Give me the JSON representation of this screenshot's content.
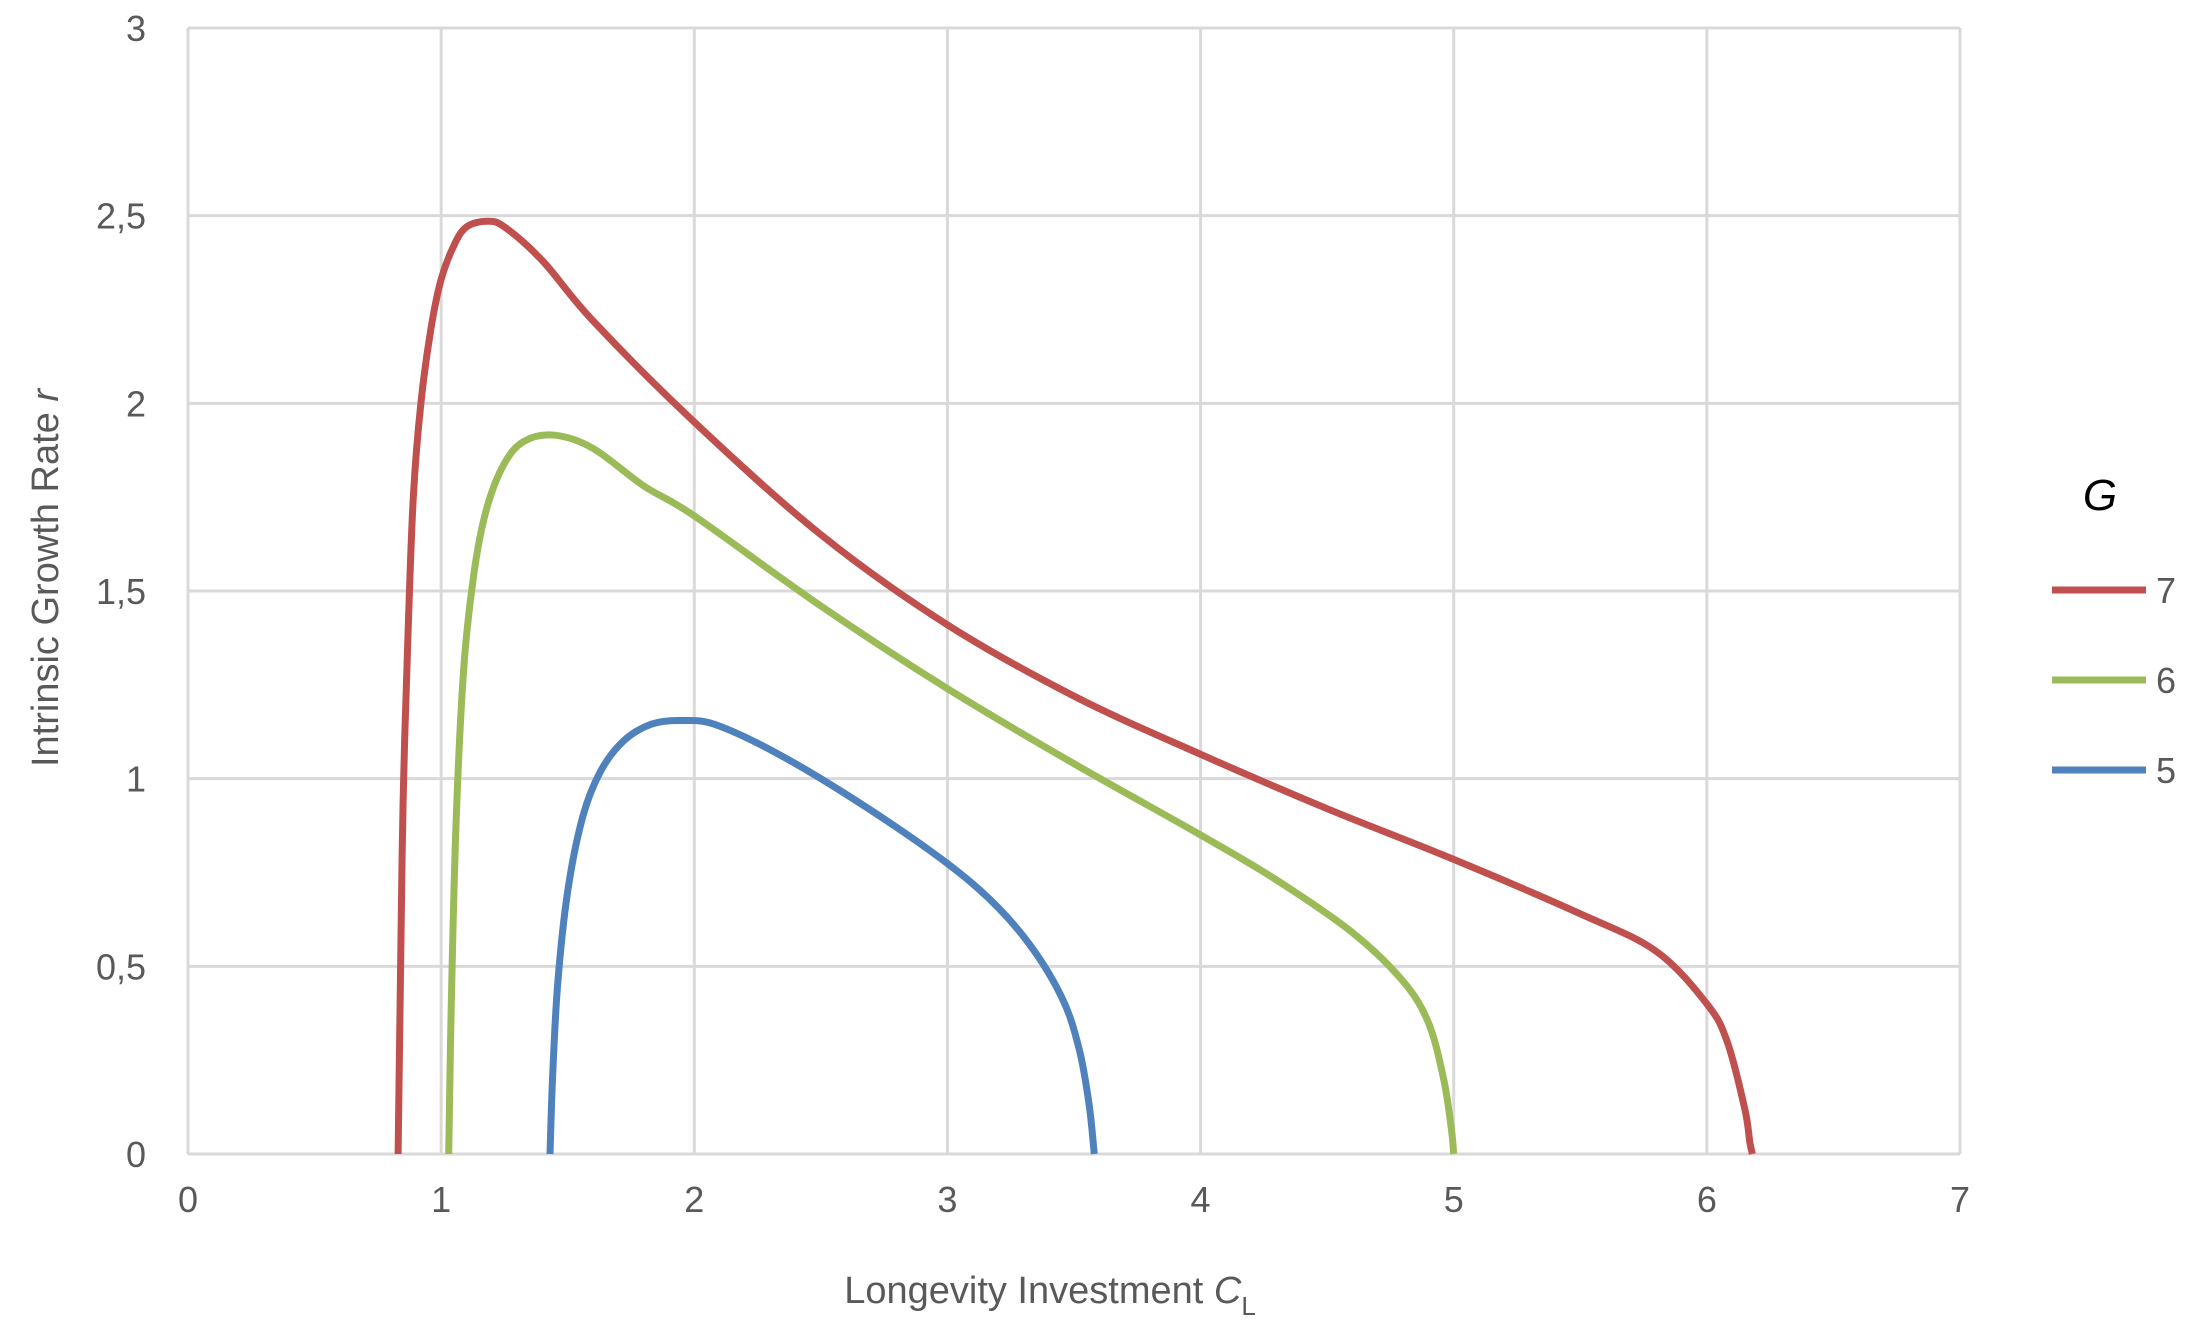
{
  "chart_data": {
    "type": "line",
    "xlabel": "Longevity Investment ",
    "xlabel_var": "C",
    "xlabel_sub": "L",
    "ylabel": "Intrinsic Growth Rate ",
    "ylabel_var": "r",
    "xlim": [
      0,
      7
    ],
    "ylim": [
      0,
      3
    ],
    "x_ticks": [
      "0",
      "1",
      "2",
      "3",
      "4",
      "5",
      "6",
      "7"
    ],
    "y_ticks": [
      "0",
      "0,5",
      "1",
      "1,5",
      "2",
      "2,5",
      "3"
    ],
    "grid": true,
    "legend_title": "G",
    "legend_position": "right",
    "series": [
      {
        "name": "7",
        "color": "#c0504d",
        "points": [
          [
            0.83,
            0
          ],
          [
            0.84,
            0.5
          ],
          [
            0.85,
            0.95
          ],
          [
            0.87,
            1.4
          ],
          [
            0.89,
            1.75
          ],
          [
            0.92,
            2.0
          ],
          [
            0.96,
            2.2
          ],
          [
            1.0,
            2.33
          ],
          [
            1.05,
            2.42
          ],
          [
            1.1,
            2.47
          ],
          [
            1.18,
            2.485
          ],
          [
            1.25,
            2.47
          ],
          [
            1.4,
            2.38
          ],
          [
            1.6,
            2.22
          ],
          [
            2.0,
            1.95
          ],
          [
            2.5,
            1.65
          ],
          [
            3.0,
            1.41
          ],
          [
            3.5,
            1.22
          ],
          [
            4.0,
            1.065
          ],
          [
            4.5,
            0.92
          ],
          [
            5.0,
            0.785
          ],
          [
            5.5,
            0.64
          ],
          [
            5.8,
            0.54
          ],
          [
            6.0,
            0.4
          ],
          [
            6.08,
            0.3
          ],
          [
            6.15,
            0.12
          ],
          [
            6.17,
            0.03
          ],
          [
            6.18,
            0
          ]
        ]
      },
      {
        "name": "6",
        "color": "#9bbb59",
        "points": [
          [
            1.03,
            0
          ],
          [
            1.04,
            0.4
          ],
          [
            1.06,
            0.9
          ],
          [
            1.09,
            1.3
          ],
          [
            1.13,
            1.55
          ],
          [
            1.18,
            1.72
          ],
          [
            1.25,
            1.84
          ],
          [
            1.33,
            1.9
          ],
          [
            1.45,
            1.915
          ],
          [
            1.6,
            1.88
          ],
          [
            1.8,
            1.78
          ],
          [
            2.0,
            1.7
          ],
          [
            2.5,
            1.46
          ],
          [
            3.0,
            1.24
          ],
          [
            3.5,
            1.04
          ],
          [
            4.0,
            0.85
          ],
          [
            4.3,
            0.73
          ],
          [
            4.6,
            0.59
          ],
          [
            4.8,
            0.46
          ],
          [
            4.9,
            0.35
          ],
          [
            4.96,
            0.2
          ],
          [
            4.99,
            0.07
          ],
          [
            5.0,
            0
          ]
        ]
      },
      {
        "name": "5",
        "color": "#4f81bd",
        "points": [
          [
            1.43,
            0
          ],
          [
            1.44,
            0.2
          ],
          [
            1.46,
            0.45
          ],
          [
            1.5,
            0.7
          ],
          [
            1.56,
            0.9
          ],
          [
            1.63,
            1.02
          ],
          [
            1.72,
            1.1
          ],
          [
            1.83,
            1.145
          ],
          [
            1.95,
            1.155
          ],
          [
            2.1,
            1.14
          ],
          [
            2.4,
            1.04
          ],
          [
            2.8,
            0.87
          ],
          [
            3.1,
            0.72
          ],
          [
            3.3,
            0.58
          ],
          [
            3.45,
            0.42
          ],
          [
            3.52,
            0.28
          ],
          [
            3.56,
            0.13
          ],
          [
            3.58,
            0
          ]
        ]
      }
    ]
  }
}
